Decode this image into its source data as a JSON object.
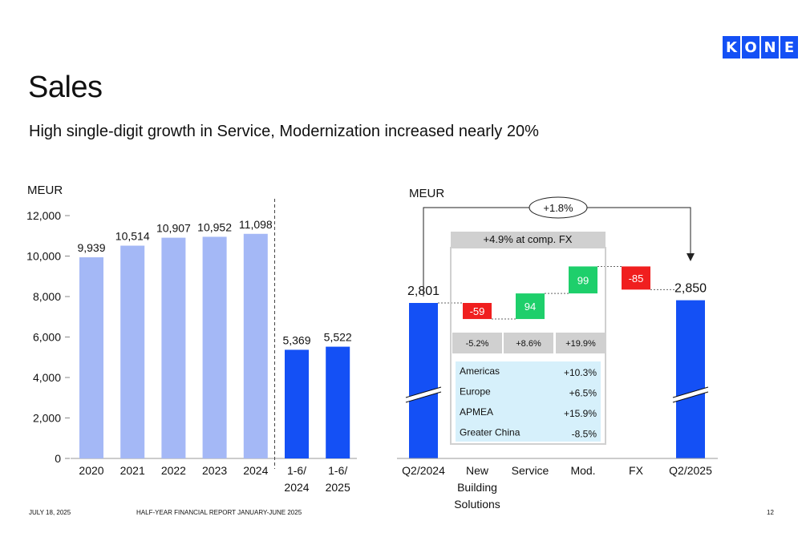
{
  "header": {
    "logo_letters": [
      "K",
      "O",
      "N",
      "E"
    ],
    "title": "Sales",
    "subtitle": "High single-digit growth in Service, Modernization increased nearly 20%"
  },
  "footer": {
    "date": "JULY 18, 2025",
    "report": "HALF-YEAR FINANCIAL REPORT JANUARY-JUNE 2025",
    "page": "12"
  },
  "colors": {
    "light_bar": "#a4b8f6",
    "dark_bar": "#1450f5",
    "negative": "#f01f1f",
    "positive": "#1ecf6b",
    "grey_box": "#d0d0d0",
    "region_box": "#d6f0fb"
  },
  "chart_data": [
    {
      "type": "bar",
      "unit_label": "MEUR",
      "categories": [
        "2020",
        "2021",
        "2022",
        "2023",
        "2024",
        "1-6/\n2024",
        "1-6/\n2025"
      ],
      "values": [
        9939,
        10514,
        10907,
        10952,
        11098,
        5369,
        5522
      ],
      "value_labels": [
        "9,939",
        "10,514",
        "10,907",
        "10,952",
        "11,098",
        "5,369",
        "5,522"
      ],
      "highlight": [
        false,
        false,
        false,
        false,
        false,
        true,
        true
      ],
      "ylim": [
        0,
        12000
      ],
      "yticks": [
        "0",
        "2,000",
        "4,000",
        "6,000",
        "8,000",
        "10,000",
        "12,000"
      ],
      "grid": false
    },
    {
      "type": "waterfall",
      "unit_label": "MEUR",
      "categories": [
        "Q2/2024",
        "New\nBuilding\nSolutions",
        "Service",
        "Mod.",
        "FX",
        "Q2/2025"
      ],
      "values": [
        2801,
        -59,
        94,
        99,
        -85,
        2850
      ],
      "value_labels": [
        "2,801",
        "-59",
        "94",
        "99",
        "-85",
        "2,850"
      ],
      "total_change": "+1.8%",
      "comparable_fx_label": "+4.9% at comp. FX",
      "segment_growth": [
        "-5.2%",
        "+8.6%",
        "+19.9%"
      ],
      "regions": [
        {
          "name": "Americas",
          "value": "+10.3%"
        },
        {
          "name": "Europe",
          "value": "+6.5%"
        },
        {
          "name": "APMEA",
          "value": "+15.9%"
        },
        {
          "name": "Greater China",
          "value": "-8.5%"
        }
      ]
    }
  ]
}
